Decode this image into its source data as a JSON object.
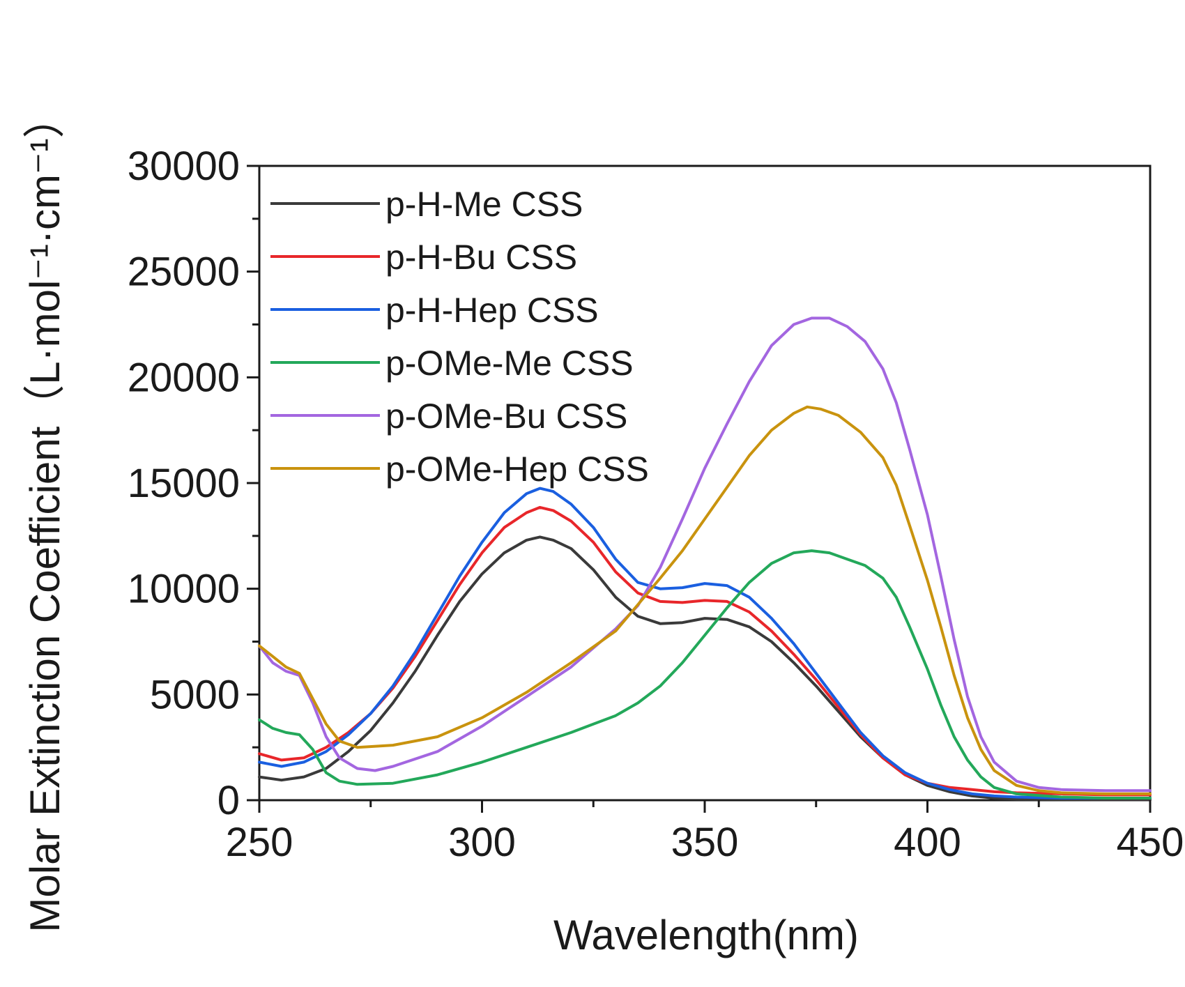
{
  "chart_data": {
    "type": "line",
    "title": "",
    "xlabel": "Wavelength(nm)",
    "ylabel": "Molar Extinction Coefficient（L·mol⁻¹·cm⁻¹）",
    "xlim": [
      250,
      450
    ],
    "ylim": [
      0,
      30000
    ],
    "x_ticks": [
      250,
      300,
      350,
      400,
      450
    ],
    "y_ticks": [
      0,
      5000,
      10000,
      15000,
      20000,
      25000,
      30000
    ],
    "x_tick_labels": [
      "250",
      "300",
      "350",
      "400",
      "450"
    ],
    "y_tick_labels": [
      "0",
      "5000",
      "10000",
      "15000",
      "20000",
      "25000",
      "30000"
    ],
    "grid": false,
    "legend_position": "top-left",
    "series": [
      {
        "name": "p-H-Me CSS",
        "color": "#3a3a3a",
        "points": [
          [
            250,
            1100
          ],
          [
            255,
            950
          ],
          [
            260,
            1100
          ],
          [
            265,
            1500
          ],
          [
            270,
            2300
          ],
          [
            275,
            3300
          ],
          [
            280,
            4600
          ],
          [
            285,
            6100
          ],
          [
            290,
            7800
          ],
          [
            295,
            9400
          ],
          [
            300,
            10700
          ],
          [
            305,
            11700
          ],
          [
            310,
            12300
          ],
          [
            313,
            12450
          ],
          [
            316,
            12300
          ],
          [
            320,
            11900
          ],
          [
            325,
            10900
          ],
          [
            330,
            9600
          ],
          [
            335,
            8700
          ],
          [
            340,
            8350
          ],
          [
            345,
            8400
          ],
          [
            350,
            8600
          ],
          [
            355,
            8550
          ],
          [
            360,
            8200
          ],
          [
            365,
            7500
          ],
          [
            370,
            6500
          ],
          [
            375,
            5400
          ],
          [
            380,
            4200
          ],
          [
            385,
            3000
          ],
          [
            390,
            2000
          ],
          [
            395,
            1200
          ],
          [
            400,
            700
          ],
          [
            405,
            400
          ],
          [
            410,
            200
          ],
          [
            415,
            100
          ],
          [
            420,
            50
          ],
          [
            430,
            30
          ],
          [
            440,
            20
          ],
          [
            450,
            20
          ]
        ]
      },
      {
        "name": "p-H-Bu CSS",
        "color": "#e8262a",
        "points": [
          [
            250,
            2200
          ],
          [
            255,
            1900
          ],
          [
            260,
            2000
          ],
          [
            265,
            2500
          ],
          [
            270,
            3200
          ],
          [
            275,
            4100
          ],
          [
            280,
            5300
          ],
          [
            285,
            6800
          ],
          [
            290,
            8500
          ],
          [
            295,
            10200
          ],
          [
            300,
            11700
          ],
          [
            305,
            12900
          ],
          [
            310,
            13600
          ],
          [
            313,
            13850
          ],
          [
            316,
            13700
          ],
          [
            320,
            13200
          ],
          [
            325,
            12200
          ],
          [
            330,
            10800
          ],
          [
            335,
            9800
          ],
          [
            340,
            9400
          ],
          [
            345,
            9350
          ],
          [
            350,
            9450
          ],
          [
            355,
            9400
          ],
          [
            360,
            8900
          ],
          [
            365,
            8000
          ],
          [
            370,
            6900
          ],
          [
            375,
            5700
          ],
          [
            380,
            4400
          ],
          [
            385,
            3100
          ],
          [
            390,
            2000
          ],
          [
            395,
            1200
          ],
          [
            400,
            800
          ],
          [
            405,
            600
          ],
          [
            410,
            500
          ],
          [
            415,
            400
          ],
          [
            420,
            350
          ],
          [
            430,
            300
          ],
          [
            440,
            250
          ],
          [
            450,
            250
          ]
        ]
      },
      {
        "name": "p-H-Hep CSS",
        "color": "#1a5fe0",
        "points": [
          [
            250,
            1800
          ],
          [
            255,
            1600
          ],
          [
            260,
            1800
          ],
          [
            265,
            2300
          ],
          [
            270,
            3100
          ],
          [
            275,
            4100
          ],
          [
            280,
            5400
          ],
          [
            285,
            7000
          ],
          [
            290,
            8800
          ],
          [
            295,
            10600
          ],
          [
            300,
            12200
          ],
          [
            305,
            13600
          ],
          [
            310,
            14500
          ],
          [
            313,
            14750
          ],
          [
            316,
            14600
          ],
          [
            320,
            14000
          ],
          [
            325,
            12900
          ],
          [
            330,
            11400
          ],
          [
            335,
            10300
          ],
          [
            340,
            10000
          ],
          [
            345,
            10050
          ],
          [
            350,
            10250
          ],
          [
            355,
            10150
          ],
          [
            360,
            9600
          ],
          [
            365,
            8600
          ],
          [
            370,
            7400
          ],
          [
            375,
            6000
          ],
          [
            380,
            4600
          ],
          [
            385,
            3200
          ],
          [
            390,
            2100
          ],
          [
            395,
            1300
          ],
          [
            400,
            800
          ],
          [
            405,
            500
          ],
          [
            410,
            300
          ],
          [
            415,
            200
          ],
          [
            420,
            150
          ],
          [
            430,
            100
          ],
          [
            440,
            100
          ],
          [
            450,
            100
          ]
        ]
      },
      {
        "name": "p-OMe-Me CSS",
        "color": "#23a85a",
        "points": [
          [
            250,
            3800
          ],
          [
            253,
            3400
          ],
          [
            256,
            3200
          ],
          [
            259,
            3100
          ],
          [
            262,
            2400
          ],
          [
            265,
            1300
          ],
          [
            268,
            900
          ],
          [
            272,
            750
          ],
          [
            280,
            800
          ],
          [
            290,
            1200
          ],
          [
            300,
            1800
          ],
          [
            310,
            2500
          ],
          [
            320,
            3200
          ],
          [
            325,
            3600
          ],
          [
            330,
            4000
          ],
          [
            335,
            4600
          ],
          [
            340,
            5400
          ],
          [
            345,
            6500
          ],
          [
            350,
            7800
          ],
          [
            355,
            9100
          ],
          [
            360,
            10300
          ],
          [
            365,
            11200
          ],
          [
            370,
            11700
          ],
          [
            374,
            11800
          ],
          [
            378,
            11700
          ],
          [
            382,
            11400
          ],
          [
            386,
            11100
          ],
          [
            390,
            10500
          ],
          [
            393,
            9600
          ],
          [
            396,
            8200
          ],
          [
            400,
            6200
          ],
          [
            403,
            4500
          ],
          [
            406,
            3000
          ],
          [
            409,
            1900
          ],
          [
            412,
            1100
          ],
          [
            415,
            600
          ],
          [
            420,
            300
          ],
          [
            430,
            150
          ],
          [
            440,
            100
          ],
          [
            450,
            100
          ]
        ]
      },
      {
        "name": "p-OMe-Bu CSS",
        "color": "#a366e0",
        "points": [
          [
            250,
            7300
          ],
          [
            253,
            6500
          ],
          [
            256,
            6100
          ],
          [
            259,
            5900
          ],
          [
            262,
            4600
          ],
          [
            265,
            3000
          ],
          [
            268,
            2000
          ],
          [
            272,
            1500
          ],
          [
            276,
            1400
          ],
          [
            280,
            1600
          ],
          [
            290,
            2300
          ],
          [
            300,
            3500
          ],
          [
            310,
            4900
          ],
          [
            320,
            6300
          ],
          [
            330,
            8100
          ],
          [
            335,
            9200
          ],
          [
            340,
            11000
          ],
          [
            345,
            13300
          ],
          [
            350,
            15700
          ],
          [
            355,
            17800
          ],
          [
            360,
            19800
          ],
          [
            365,
            21500
          ],
          [
            370,
            22500
          ],
          [
            374,
            22800
          ],
          [
            378,
            22800
          ],
          [
            382,
            22400
          ],
          [
            386,
            21700
          ],
          [
            390,
            20400
          ],
          [
            393,
            18800
          ],
          [
            396,
            16600
          ],
          [
            400,
            13500
          ],
          [
            403,
            10600
          ],
          [
            406,
            7600
          ],
          [
            409,
            4900
          ],
          [
            412,
            3000
          ],
          [
            415,
            1800
          ],
          [
            420,
            900
          ],
          [
            425,
            600
          ],
          [
            430,
            500
          ],
          [
            440,
            450
          ],
          [
            450,
            450
          ]
        ]
      },
      {
        "name": "p-OMe-Hep CSS",
        "color": "#c9930e",
        "points": [
          [
            250,
            7300
          ],
          [
            253,
            6800
          ],
          [
            256,
            6300
          ],
          [
            259,
            6000
          ],
          [
            262,
            4800
          ],
          [
            265,
            3600
          ],
          [
            268,
            2800
          ],
          [
            272,
            2500
          ],
          [
            280,
            2600
          ],
          [
            290,
            3000
          ],
          [
            300,
            3900
          ],
          [
            310,
            5100
          ],
          [
            320,
            6500
          ],
          [
            330,
            8000
          ],
          [
            340,
            10500
          ],
          [
            345,
            11800
          ],
          [
            350,
            13300
          ],
          [
            355,
            14800
          ],
          [
            360,
            16300
          ],
          [
            365,
            17500
          ],
          [
            370,
            18300
          ],
          [
            373,
            18600
          ],
          [
            376,
            18500
          ],
          [
            380,
            18200
          ],
          [
            385,
            17400
          ],
          [
            390,
            16200
          ],
          [
            393,
            14900
          ],
          [
            396,
            13000
          ],
          [
            400,
            10400
          ],
          [
            403,
            8200
          ],
          [
            406,
            5900
          ],
          [
            409,
            3900
          ],
          [
            412,
            2400
          ],
          [
            415,
            1400
          ],
          [
            420,
            700
          ],
          [
            425,
            450
          ],
          [
            430,
            350
          ],
          [
            440,
            300
          ],
          [
            450,
            300
          ]
        ]
      }
    ]
  }
}
